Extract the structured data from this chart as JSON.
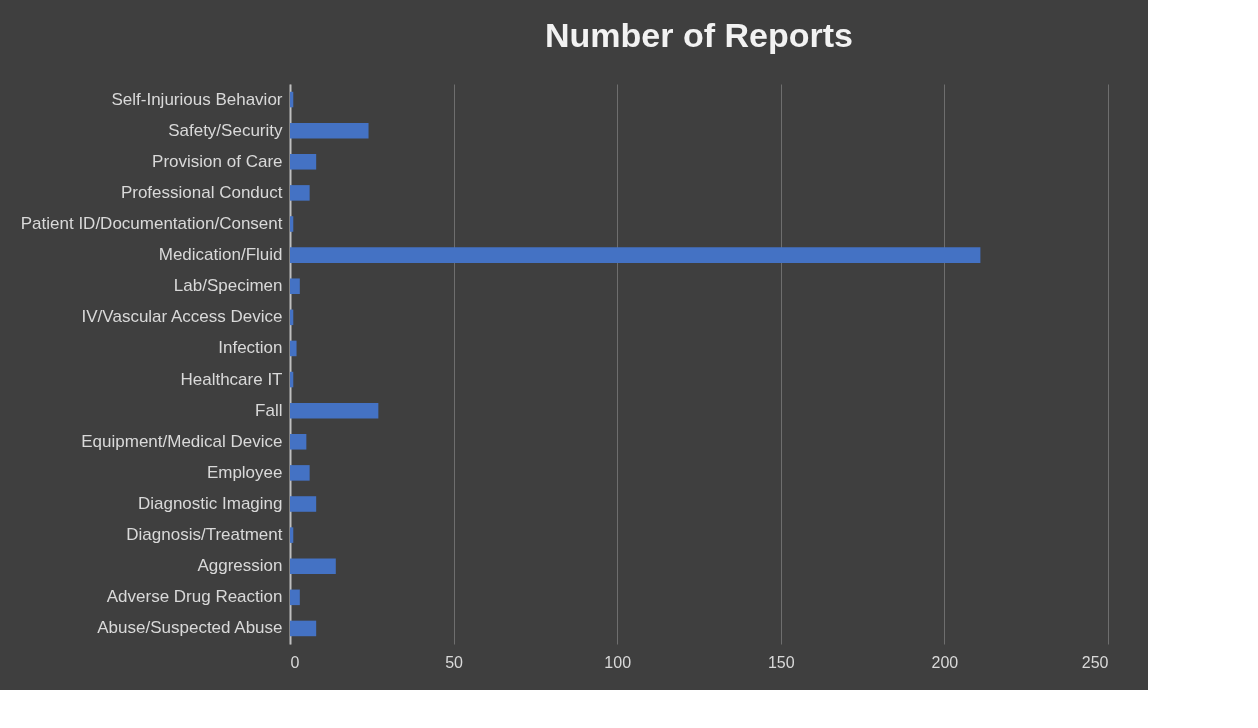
{
  "chart_data": {
    "type": "bar",
    "orientation": "horizontal",
    "title": "Number of Reports",
    "categories": [
      "Self-Injurious Behavior",
      "Safety/Security",
      "Provision of Care",
      "Professional Conduct",
      "Patient ID/Documentation/Consent",
      "Medication/Fluid",
      "Lab/Specimen",
      "IV/Vascular Access Device",
      "Infection",
      "Healthcare IT",
      "Fall",
      "Equipment/Medical Device",
      "Employee",
      "Diagnostic Imaging",
      "Diagnosis/Treatment",
      "Aggression",
      "Adverse Drug Reaction",
      "Abuse/Suspected Abuse"
    ],
    "values": [
      1,
      24,
      8,
      6,
      1,
      211,
      3,
      1,
      2,
      1,
      27,
      5,
      6,
      8,
      1,
      14,
      3,
      8
    ],
    "color": "#4472c4",
    "xlim": [
      0,
      250
    ],
    "xticks": [
      0,
      50,
      100,
      150,
      200,
      250
    ],
    "grid": "x"
  }
}
